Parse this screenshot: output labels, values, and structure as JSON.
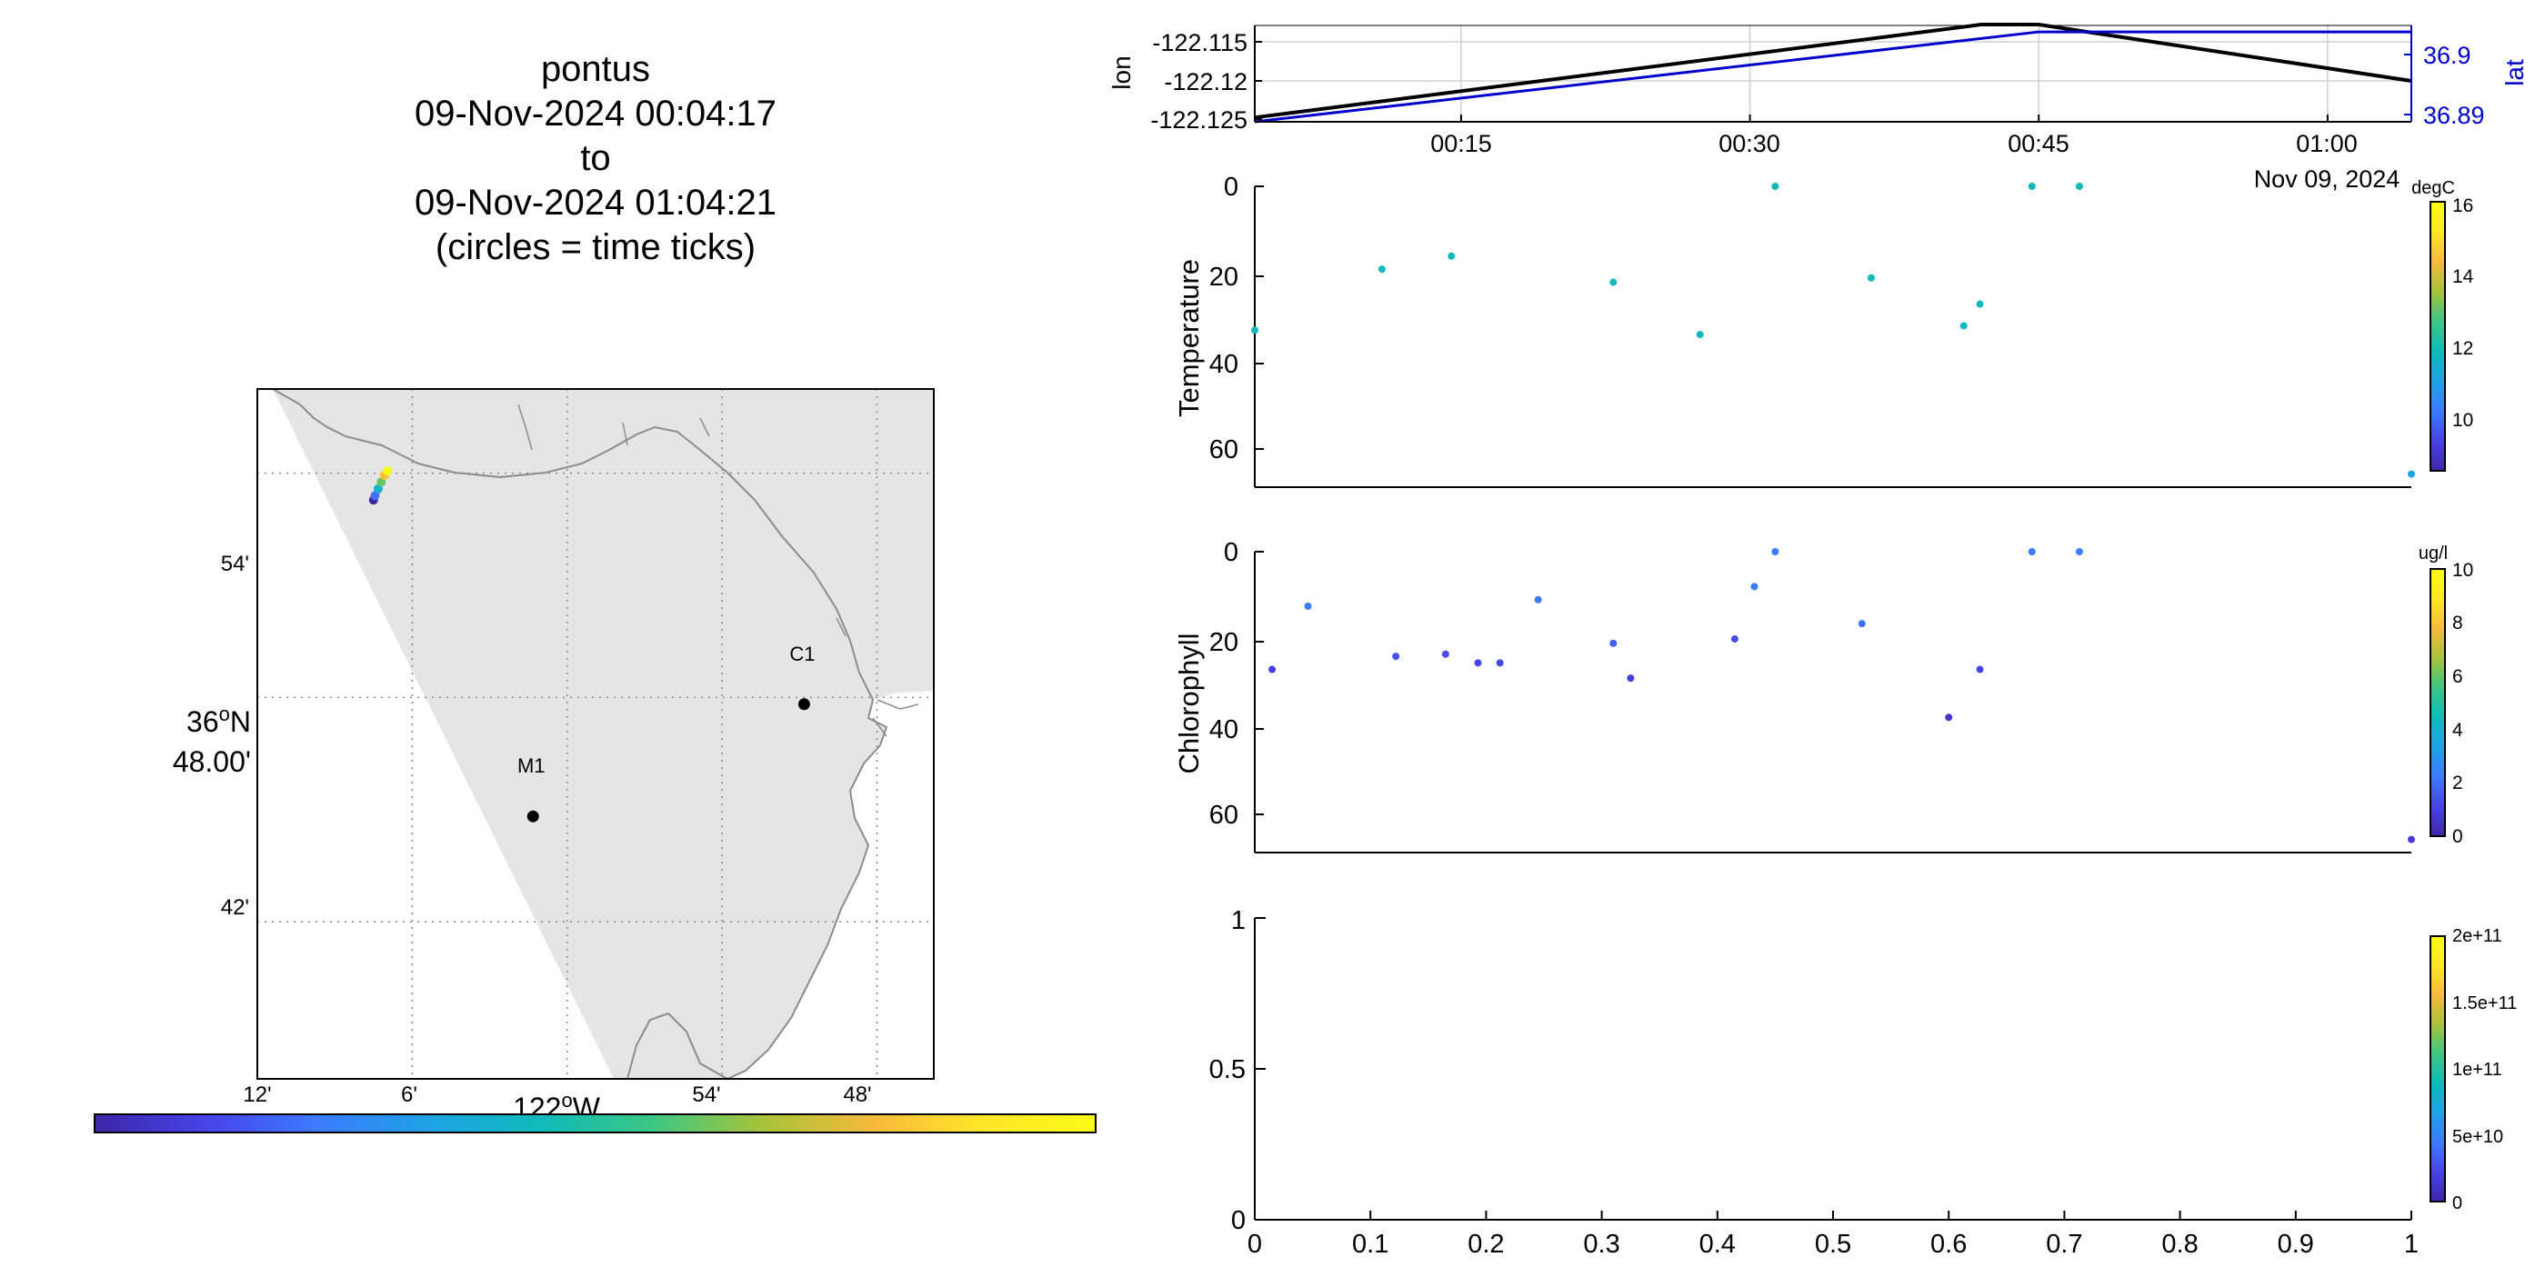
{
  "title": {
    "line1": "pontus",
    "line2": "09-Nov-2024 00:04:17",
    "line3": "to",
    "line4": "09-Nov-2024 01:04:21",
    "line5": "(circles = time ticks)"
  },
  "colors": {
    "land": "#e5e5e5",
    "coast": "#8c8c8c",
    "grid": "#c8c8c8",
    "lon_line": "#000000",
    "lat_line": "#0000cc",
    "colormap": [
      "#3e26a8",
      "#4743e8",
      "#3c7bfe",
      "#1fa2e6",
      "#0fbaba",
      "#3bc684",
      "#a7c33a",
      "#f6b93c",
      "#fee72a",
      "#f9fb15"
    ]
  },
  "map": {
    "lat_ticks": [
      "54'",
      "36°N 48.00'",
      "42'"
    ],
    "lat_tick_main_line1": "36",
    "lat_tick_main_sup": "o",
    "lat_tick_main_suffix": "N",
    "lat_tick_main_line2": "48.00'",
    "lon_ticks": [
      "12'",
      "6'",
      "54'",
      "48'"
    ],
    "lon_main_label": "122",
    "lon_main_sup": "o",
    "lon_main_suffix": "W",
    "stations": [
      {
        "name": "M1",
        "lon": -122.022,
        "lat": 36.747
      },
      {
        "name": "C1",
        "lon": -121.847,
        "lat": 36.797
      }
    ],
    "track": [
      {
        "lon": -122.125,
        "lat": 36.888,
        "c": 0.0
      },
      {
        "lon": -122.124,
        "lat": 36.89,
        "c": 0.2
      },
      {
        "lon": -122.122,
        "lat": 36.893,
        "c": 0.4
      },
      {
        "lon": -122.12,
        "lat": 36.896,
        "c": 0.6
      },
      {
        "lon": -122.118,
        "lat": 36.899,
        "c": 0.8
      },
      {
        "lon": -122.116,
        "lat": 36.901,
        "c": 1.0
      }
    ]
  },
  "chart_data": [
    {
      "type": "line",
      "title": "",
      "ylabel_left": "lon",
      "ylabel_right": "lat",
      "x_ticks": [
        "00:15",
        "00:30",
        "00:45",
        "01:00"
      ],
      "x_date_label": "Nov 09, 2024",
      "y_left_ticks": [
        "-122.115",
        "-122.12",
        "-122.125"
      ],
      "y_right_ticks": [
        "36.9",
        "36.89"
      ],
      "x_range": [
        "00:04:17",
        "01:04:21"
      ],
      "y_left_range": [
        -122.1255,
        -122.1142
      ],
      "y_right_range": [
        36.888,
        36.9045
      ],
      "series": [
        {
          "name": "lon",
          "axis": "left",
          "x": [
            "00:04:17",
            "00:42:00",
            "00:45:00",
            "01:04:21"
          ],
          "values": [
            -122.125,
            -122.1141,
            -122.1141,
            -122.1207
          ]
        },
        {
          "name": "lat",
          "axis": "right",
          "x": [
            "00:04:17",
            "00:45:00",
            "01:04:21"
          ],
          "values": [
            36.888,
            36.9034,
            36.9034
          ]
        }
      ],
      "grid": true
    },
    {
      "type": "scatter",
      "ylabel": "Temperature",
      "colorbar_unit": "degC",
      "colorbar_ticks": [
        "16",
        "14",
        "12",
        "10"
      ],
      "clim": [
        8.5,
        16
      ],
      "ylim": [
        0,
        69
      ],
      "y_reversed": true,
      "y_ticks": [
        "0",
        "20",
        "40",
        "60"
      ],
      "points": [
        {
          "x": 0.0,
          "y": 33,
          "c": 11.8
        },
        {
          "x": 0.11,
          "y": 19,
          "c": 11.8
        },
        {
          "x": 0.17,
          "y": 16,
          "c": 11.8
        },
        {
          "x": 0.31,
          "y": 22,
          "c": 11.8
        },
        {
          "x": 0.385,
          "y": 34,
          "c": 11.8
        },
        {
          "x": 0.45,
          "y": 0,
          "c": 11.8
        },
        {
          "x": 0.533,
          "y": 21,
          "c": 11.8
        },
        {
          "x": 0.613,
          "y": 32,
          "c": 11.8
        },
        {
          "x": 0.627,
          "y": 27,
          "c": 11.8
        },
        {
          "x": 0.672,
          "y": 0,
          "c": 11.8
        },
        {
          "x": 0.713,
          "y": 0,
          "c": 11.8
        },
        {
          "x": 1.0,
          "y": 66,
          "c": 11.0
        }
      ]
    },
    {
      "type": "scatter",
      "ylabel": "Chlorophyll",
      "colorbar_unit": "ug/l",
      "colorbar_ticks": [
        "10",
        "8",
        "6",
        "4",
        "2",
        "0"
      ],
      "clim": [
        0,
        10
      ],
      "ylim": [
        0,
        69
      ],
      "y_reversed": true,
      "y_ticks": [
        "0",
        "20",
        "40",
        "60"
      ],
      "points": [
        {
          "x": 0.015,
          "y": 27,
          "c": 1.0
        },
        {
          "x": 0.046,
          "y": 12.5,
          "c": 2.2
        },
        {
          "x": 0.122,
          "y": 24,
          "c": 1.5
        },
        {
          "x": 0.165,
          "y": 23.5,
          "c": 1.3
        },
        {
          "x": 0.193,
          "y": 25.5,
          "c": 1.2
        },
        {
          "x": 0.212,
          "y": 25.5,
          "c": 1.2
        },
        {
          "x": 0.245,
          "y": 11,
          "c": 2.2
        },
        {
          "x": 0.31,
          "y": 21,
          "c": 1.6
        },
        {
          "x": 0.325,
          "y": 29,
          "c": 0.9
        },
        {
          "x": 0.415,
          "y": 20,
          "c": 1.3
        },
        {
          "x": 0.432,
          "y": 8,
          "c": 2.3
        },
        {
          "x": 0.45,
          "y": 0,
          "c": 2.3
        },
        {
          "x": 0.525,
          "y": 16.5,
          "c": 2.0
        },
        {
          "x": 0.6,
          "y": 38,
          "c": 0.5
        },
        {
          "x": 0.627,
          "y": 27,
          "c": 1.2
        },
        {
          "x": 0.672,
          "y": 0,
          "c": 2.3
        },
        {
          "x": 0.713,
          "y": 0,
          "c": 2.3
        },
        {
          "x": 1.0,
          "y": 66,
          "c": 0.8
        }
      ]
    },
    {
      "type": "scatter",
      "ylabel": "",
      "colorbar_ticks": [
        "2e+11",
        "1.5e+11",
        "1e+11",
        "5e+10",
        "0"
      ],
      "clim": [
        0,
        200000000000
      ],
      "xlim": [
        0,
        1
      ],
      "ylim": [
        0,
        1
      ],
      "x_ticks": [
        "0",
        "0.1",
        "0.2",
        "0.3",
        "0.4",
        "0.5",
        "0.6",
        "0.7",
        "0.8",
        "0.9",
        "1"
      ],
      "y_ticks": [
        "1",
        "0.5",
        "0"
      ],
      "points": []
    }
  ]
}
